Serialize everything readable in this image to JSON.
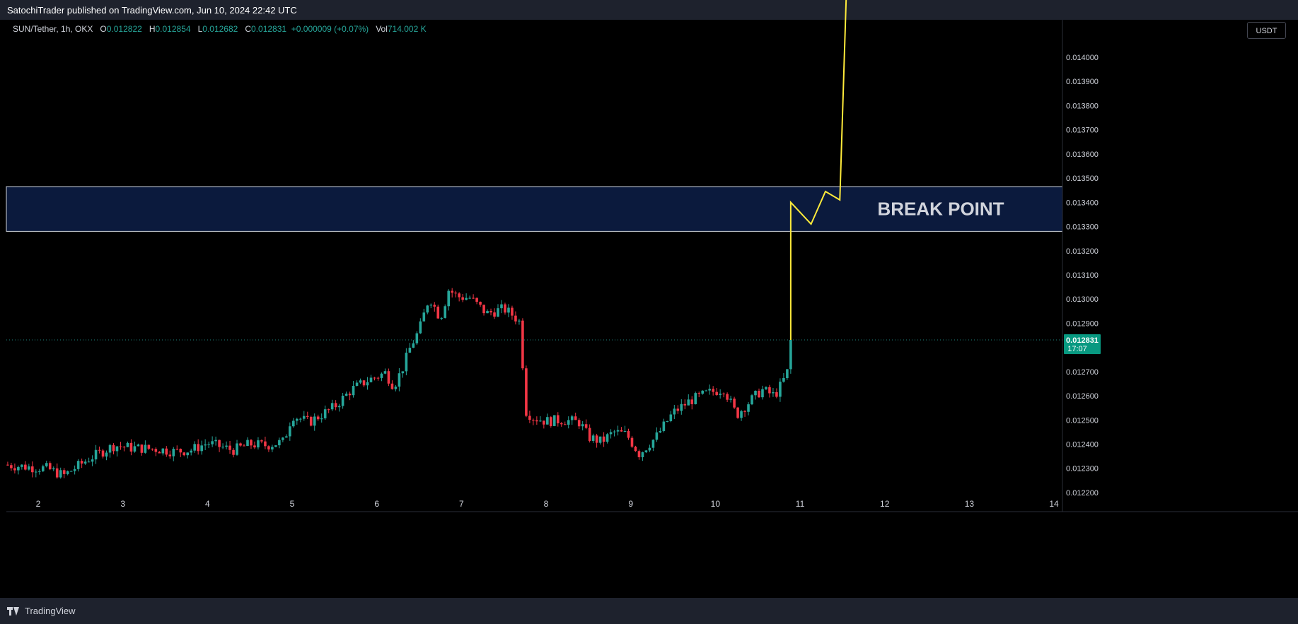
{
  "header": {
    "published": "SatochiTrader published on TradingView.com, Jun 10, 2024 22:42 UTC"
  },
  "legend": {
    "symbol": "SUN/Tether, 1h, OKX",
    "o_label": "O",
    "o": "0.012822",
    "h_label": "H",
    "h": "0.012854",
    "l_label": "L",
    "l": "0.012682",
    "c_label": "C",
    "c": "0.012831",
    "change": "+0.000009 (+0.07%)",
    "vol_label": "Vol",
    "vol": "714.002 K"
  },
  "currency_button": "USDT",
  "footer": {
    "brand": "TradingView"
  },
  "colors": {
    "up": "#26a69a",
    "down": "#f23645",
    "projection": "#ffeb3b",
    "zone": "#0b1a3d",
    "price_tag": "#089981"
  },
  "chart_data": {
    "type": "candlestick",
    "yticks": [
      "0.014000",
      "0.013900",
      "0.013800",
      "0.013700",
      "0.013600",
      "0.013500",
      "0.013400",
      "0.013300",
      "0.013200",
      "0.013100",
      "0.013000",
      "0.012900",
      "0.012800",
      "0.012700",
      "0.012600",
      "0.012500",
      "0.012400",
      "0.012300",
      "0.012200"
    ],
    "xticks": [
      "2",
      "3",
      "4",
      "5",
      "6",
      "7",
      "8",
      "9",
      "10",
      "11",
      "12",
      "13",
      "14"
    ],
    "ylim": [
      0.01219,
      0.01414
    ],
    "last_price": {
      "value": "0.012831",
      "countdown": "17:07"
    },
    "zone": {
      "label": "BREAK POINT",
      "low": 0.01328,
      "high": 0.013465
    },
    "projection": [
      {
        "day": 10.89,
        "price": 0.012831
      },
      {
        "day": 10.89,
        "price": 0.0134
      },
      {
        "day": 11.13,
        "price": 0.01331
      },
      {
        "day": 11.3,
        "price": 0.013445
      },
      {
        "day": 11.47,
        "price": 0.01341
      },
      {
        "day": 11.55,
        "price": 0.0143
      }
    ],
    "anchors": [
      [
        1.6,
        0.012315
      ],
      [
        1.9,
        0.012305
      ],
      [
        2.1,
        0.0123
      ],
      [
        2.3,
        0.01227
      ],
      [
        2.6,
        0.01234
      ],
      [
        2.9,
        0.012395
      ],
      [
        3.1,
        0.012385
      ],
      [
        3.4,
        0.01238
      ],
      [
        3.6,
        0.01237
      ],
      [
        3.8,
        0.012375
      ],
      [
        4.0,
        0.012405
      ],
      [
        4.3,
        0.012375
      ],
      [
        4.5,
        0.0124
      ],
      [
        4.7,
        0.012395
      ],
      [
        4.9,
        0.01241
      ],
      [
        5.0,
        0.01252
      ],
      [
        5.2,
        0.01249
      ],
      [
        5.5,
        0.012555
      ],
      [
        5.7,
        0.012625
      ],
      [
        5.9,
        0.012665
      ],
      [
        6.1,
        0.012695
      ],
      [
        6.2,
        0.01264
      ],
      [
        6.3,
        0.01271
      ],
      [
        6.4,
        0.012805
      ],
      [
        6.5,
        0.01287
      ],
      [
        6.62,
        0.01301
      ],
      [
        6.75,
        0.01292
      ],
      [
        6.85,
        0.01304
      ],
      [
        6.95,
        0.01301
      ],
      [
        7.1,
        0.013005
      ],
      [
        7.3,
        0.01294
      ],
      [
        7.5,
        0.01296
      ],
      [
        7.62,
        0.01293
      ],
      [
        7.7,
        0.0129
      ],
      [
        7.75,
        0.01254
      ],
      [
        7.85,
        0.01251
      ],
      [
        8.0,
        0.012495
      ],
      [
        8.2,
        0.0125
      ],
      [
        8.4,
        0.01249
      ],
      [
        8.5,
        0.01243
      ],
      [
        8.65,
        0.01241
      ],
      [
        8.8,
        0.01245
      ],
      [
        8.95,
        0.01244
      ],
      [
        9.1,
        0.01236
      ],
      [
        9.3,
        0.01243
      ],
      [
        9.5,
        0.01253
      ],
      [
        9.7,
        0.01258
      ],
      [
        9.9,
        0.01261
      ],
      [
        10.1,
        0.01263
      ],
      [
        10.25,
        0.01252
      ],
      [
        10.4,
        0.012575
      ],
      [
        10.55,
        0.012625
      ],
      [
        10.7,
        0.0126
      ],
      [
        10.8,
        0.01266
      ],
      [
        10.85,
        0.0127
      ],
      [
        10.9,
        0.012831
      ]
    ]
  }
}
